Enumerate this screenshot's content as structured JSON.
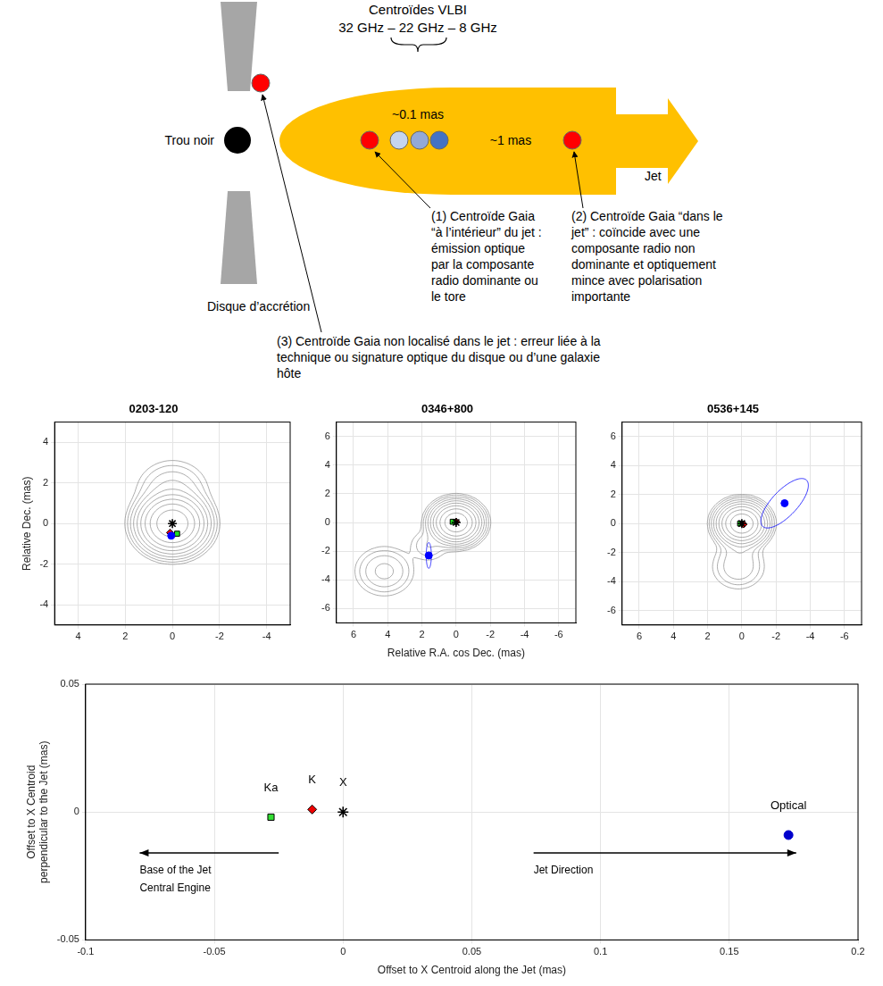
{
  "diagram": {
    "header": [
      "Centroïdes VLBI",
      "32 GHz – 22 GHz – 8 GHz"
    ],
    "black_hole": "Trou noir",
    "disk": "Disque d’accrétion",
    "vlbi_spacing": "~0.1 mas",
    "gaia_spacing": "~1 mas",
    "jet": "Jet",
    "notes": [
      {
        "lines": [
          "(1) Centroïde Gaia",
          "“à l’intérieur” du jet :",
          "émission optique",
          "par la composante",
          "radio dominante ou",
          "le tore"
        ]
      },
      {
        "lines": [
          "(2) Centroïde Gaia “dans le",
          "jet” : coïncide avec une",
          "composante radio non",
          "dominante et optiquement",
          "mince avec polarisation",
          "importante"
        ]
      },
      {
        "lines": [
          "(3) Centroïde Gaia non localisé dans le jet : erreur liée à la",
          "technique ou signature optique du disque ou d’une galaxie",
          "hôte"
        ]
      }
    ]
  },
  "chart_data": [
    {
      "type": "scatter",
      "title": "0203-120",
      "ylabel": "Relative Dec. (mas)",
      "xlim": [
        5,
        -5
      ],
      "ylim": [
        -5,
        5
      ],
      "xticks": [
        4,
        2,
        0,
        -2,
        -4
      ],
      "yticks": [
        -4,
        -2,
        0,
        2,
        4
      ],
      "grid": true,
      "contour_levels": [
        0.002,
        0.004,
        0.008,
        0.016,
        0.032,
        0.064,
        0.128,
        0.256,
        0.512
      ],
      "contour_components": [
        {
          "x": 0,
          "y": 0,
          "flux": 1,
          "size": 0.57
        },
        {
          "x": 0,
          "y": 1.6,
          "flux": 0.02,
          "size": 0.7
        }
      ],
      "error_ellipse": {
        "x": 0.05,
        "y": -0.6,
        "semi_major": 0.12,
        "semi_minor": 0.08,
        "position_angle": 0,
        "color": "#0000ff"
      },
      "series": [
        {
          "color": "#000000",
          "marker": "star",
          "x": [
            0
          ],
          "y": [
            0
          ]
        },
        {
          "color": "#0000ff",
          "marker": "circle",
          "x": [
            0.05
          ],
          "y": [
            -0.6
          ]
        },
        {
          "color": "#22dd22",
          "marker": "square",
          "x": [
            -0.2
          ],
          "y": [
            -0.5
          ]
        },
        {
          "color": "#ff0000",
          "marker": "diamond",
          "x": [
            0.1
          ],
          "y": [
            -0.45
          ]
        }
      ]
    },
    {
      "type": "scatter",
      "title": "0346+800",
      "xlabel": "Relative R.A. cos Dec. (mas)",
      "xlim": [
        7,
        -7
      ],
      "ylim": [
        -7,
        7
      ],
      "xticks": [
        6,
        4,
        2,
        0,
        -2,
        -4,
        -6
      ],
      "yticks": [
        -6,
        -4,
        -2,
        0,
        2,
        4,
        6
      ],
      "grid": true,
      "contour_levels": [
        0.002,
        0.004,
        0.008,
        0.016,
        0.032,
        0.064,
        0.128,
        0.256,
        0.512
      ],
      "contour_components": [
        {
          "x": 0,
          "y": 0,
          "flux": 1,
          "size": 0.57
        },
        {
          "x": 1.6,
          "y": -1.6,
          "flux": 0.008,
          "size": 0.6
        },
        {
          "x": 4.2,
          "y": -3.4,
          "flux": 0.02,
          "size": 0.8
        }
      ],
      "error_ellipse": {
        "x": 1.6,
        "y": -2.3,
        "semi_major": 0.9,
        "semi_minor": 0.15,
        "position_angle": 0,
        "color": "#0000ff"
      },
      "series": [
        {
          "color": "#000000",
          "marker": "star",
          "x": [
            0
          ],
          "y": [
            0
          ]
        },
        {
          "color": "#0000ff",
          "marker": "circle",
          "x": [
            1.6
          ],
          "y": [
            -2.3
          ]
        },
        {
          "color": "#22dd22",
          "marker": "square",
          "x": [
            0.2
          ],
          "y": [
            0.05
          ]
        },
        {
          "color": "#ff0000",
          "marker": "diamond",
          "x": [
            0
          ],
          "y": [
            0.05
          ]
        }
      ]
    },
    {
      "type": "scatter",
      "title": "0536+145",
      "xlim": [
        7,
        -7
      ],
      "ylim": [
        -7,
        7
      ],
      "xticks": [
        6,
        4,
        2,
        0,
        -2,
        -4,
        -6
      ],
      "yticks": [
        -6,
        -4,
        -2,
        0,
        2,
        4,
        6
      ],
      "grid": true,
      "contour_levels": [
        0.002,
        0.004,
        0.008,
        0.016,
        0.032,
        0.064,
        0.128,
        0.256,
        0.512
      ],
      "contour_components": [
        {
          "x": 0,
          "y": 0,
          "flux": 1,
          "size": 0.57
        },
        {
          "x": 0.1,
          "y": -1.6,
          "flux": 0.01,
          "size": 0.6
        },
        {
          "x": 0.2,
          "y": -3.0,
          "flux": 0.015,
          "size": 0.75
        }
      ],
      "error_ellipse": {
        "x": -2.5,
        "y": 1.4,
        "semi_major": 2.05,
        "semi_minor": 0.8,
        "position_angle": -37,
        "color": "#0000ff"
      },
      "series": [
        {
          "color": "#000000",
          "marker": "star",
          "x": [
            0
          ],
          "y": [
            0
          ]
        },
        {
          "color": "#0000ff",
          "marker": "circle",
          "x": [
            -2.5
          ],
          "y": [
            1.4
          ]
        },
        {
          "color": "#22dd22",
          "marker": "square",
          "x": [
            0.1
          ],
          "y": [
            0
          ]
        },
        {
          "color": "#ff0000",
          "marker": "diamond",
          "x": [
            -0.1
          ],
          "y": [
            -0.05
          ]
        }
      ]
    },
    {
      "type": "scatter",
      "xlabel": "Offset to X Centroid along the Jet (mas)",
      "ylabel": [
        "Offset to X Centroid",
        "perpendicular to the Jet (mas)"
      ],
      "xlim": [
        -0.1,
        0.2
      ],
      "ylim": [
        -0.05,
        0.05
      ],
      "xticks": [
        -0.1,
        -0.05,
        0,
        0.05,
        0.1,
        0.15,
        0.2
      ],
      "yticks": [
        -0.05,
        0,
        0.05
      ],
      "grid": true,
      "arrows": [
        {
          "direction": "left",
          "label": [
            "Base of the Jet",
            "Central Engine"
          ]
        },
        {
          "direction": "right",
          "label": [
            "Jet Direction"
          ]
        }
      ],
      "series": [
        {
          "name": "Ka",
          "color": "#33dd33",
          "marker": "square",
          "x": [
            -0.028
          ],
          "y": [
            -0.002
          ]
        },
        {
          "name": "K",
          "color": "#ee0000",
          "marker": "diamond",
          "x": [
            -0.012
          ],
          "y": [
            0.001
          ]
        },
        {
          "name": "X",
          "color": "#000000",
          "marker": "star",
          "x": [
            0
          ],
          "y": [
            0
          ]
        },
        {
          "name": "Optical",
          "color": "#0000cc",
          "marker": "circle",
          "x": [
            0.173
          ],
          "y": [
            -0.009
          ]
        }
      ]
    }
  ]
}
